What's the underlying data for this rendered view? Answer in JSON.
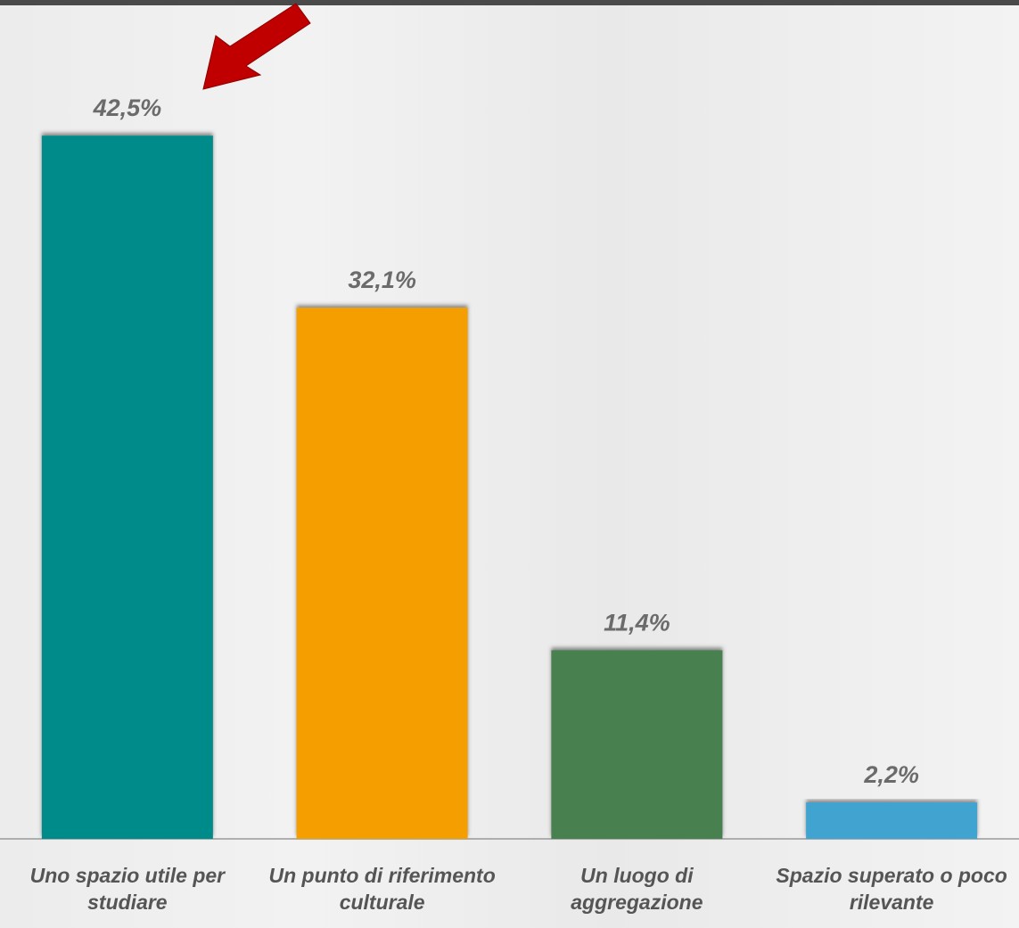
{
  "chart_data": {
    "type": "bar",
    "categories": [
      "Uno spazio utile per studiare",
      "Un punto di riferimento culturale",
      "Un luogo di aggregazione",
      "Spazio superato o poco rilevante"
    ],
    "values": [
      42.5,
      32.1,
      11.4,
      2.2
    ],
    "value_labels": [
      "42,5%",
      "32,1%",
      "11,4%",
      "2,2%"
    ],
    "colors": [
      "#008b8b",
      "#f49e00",
      "#4a8050",
      "#3fa3d0"
    ],
    "ylim": [
      0,
      50
    ]
  }
}
